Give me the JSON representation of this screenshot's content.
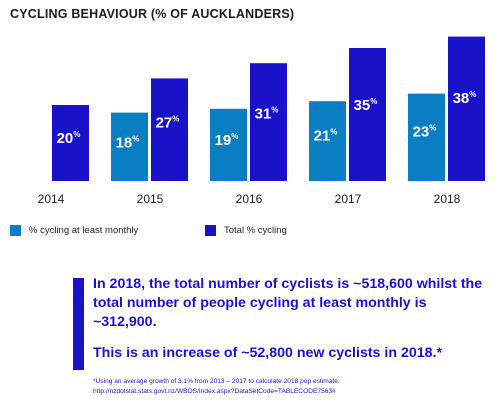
{
  "chart_data": {
    "type": "bar",
    "title": "CYCLING BEHAVIOUR (% OF AUCKLANDERS)",
    "categories": [
      "2014",
      "2015",
      "2016",
      "2017",
      "2018"
    ],
    "series": [
      {
        "name": "% cycling at least monthly",
        "color": "#0a7ec2",
        "values": [
          null,
          18,
          19,
          21,
          23
        ]
      },
      {
        "name": "Total % cycling",
        "color": "#1a12c9",
        "values": [
          20,
          27,
          31,
          35,
          38
        ]
      }
    ],
    "value_suffix": "%",
    "legend_placement": "bottom-left"
  },
  "callout": {
    "paragraph1": "In 2018, the total number of cyclists is ~518,600 whilst the total number of people cycling at least monthly is ~312,900.",
    "paragraph2": "This is an increase of ~52,800 new cyclists in 2018.*"
  },
  "footnote": {
    "line1": "*Using an average growth of 3.1% from 2013 – 2017 to calculate 2018 pop estimate.",
    "line2": "http://nzdotstat.stats.govt.nz/WBOS/Index.aspx?DataSetCode=TABLECODE7563#"
  }
}
